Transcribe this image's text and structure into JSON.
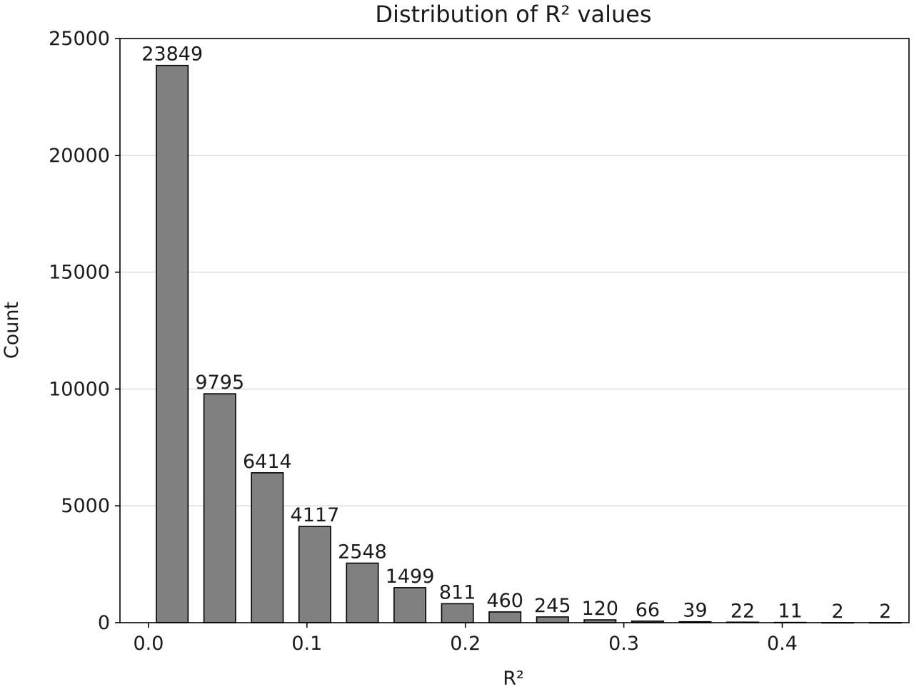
{
  "chart_data": {
    "type": "bar",
    "title": "Distribution of R² values",
    "xlabel": "R²",
    "ylabel": "Count",
    "bin_width": 0.03,
    "bar_width": 0.02,
    "x": [
      0.015,
      0.045,
      0.075,
      0.105,
      0.135,
      0.165,
      0.195,
      0.225,
      0.255,
      0.285,
      0.315,
      0.345,
      0.375,
      0.405,
      0.435,
      0.465
    ],
    "values": [
      23849,
      9795,
      6414,
      4117,
      2548,
      1499,
      811,
      460,
      245,
      120,
      66,
      39,
      22,
      11,
      2,
      2
    ],
    "value_labels": [
      "23849",
      "9795",
      "6414",
      "4117",
      "2548",
      "1499",
      "811",
      "460",
      "245",
      "120",
      "66",
      "39",
      "22",
      "11",
      "2",
      "2"
    ],
    "xlim": [
      -0.018,
      0.48
    ],
    "ylim": [
      0,
      25000
    ],
    "xticks": [
      0.0,
      0.1,
      0.2,
      0.3,
      0.4
    ],
    "xtick_labels": [
      "0.0",
      "0.1",
      "0.2",
      "0.3",
      "0.4"
    ],
    "yticks": [
      0,
      5000,
      10000,
      15000,
      20000,
      25000
    ],
    "ytick_labels": [
      "0",
      "5000",
      "10000",
      "15000",
      "20000",
      "25000"
    ],
    "grid": "y",
    "colors": {
      "bar_fill": "#808080",
      "bar_edge": "#000000",
      "grid": "#e0e0e0",
      "axis": "#000000"
    }
  }
}
